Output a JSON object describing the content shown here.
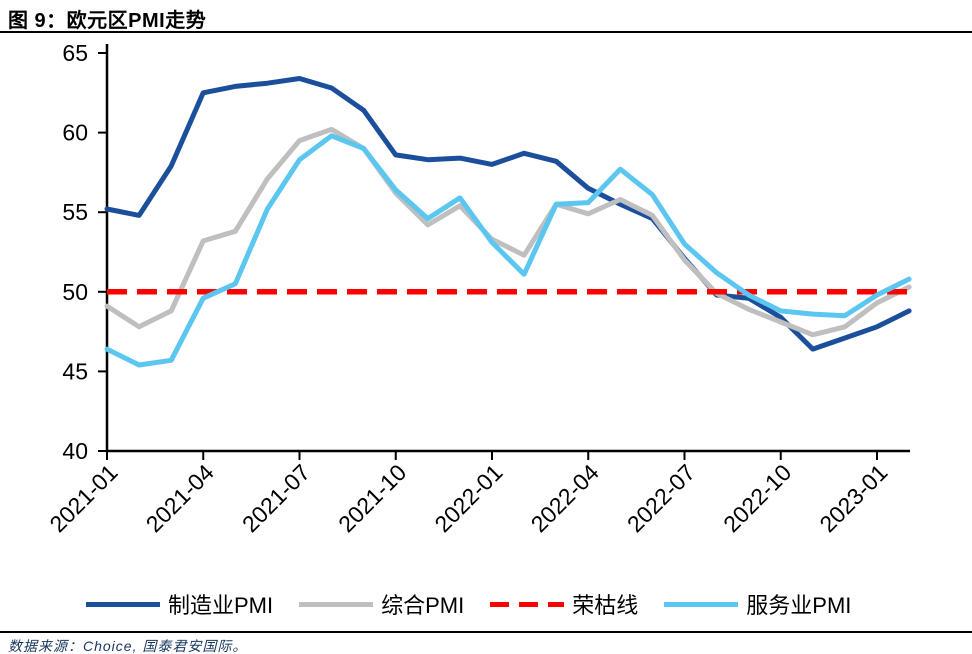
{
  "header": {
    "title": "图 9：欧元区PMI走势"
  },
  "footer": {
    "source": "数据来源：Choice, 国泰君安国际。"
  },
  "colors": {
    "manufacturing": "#1B4F9C",
    "composite": "#BFBFBF",
    "boom_bust": "#FF0000",
    "services": "#5BC6F0",
    "axis": "#000000"
  },
  "legend": [
    {
      "key": "manufacturing-pmi",
      "name": "制造业PMI",
      "color": "#1B4F9C",
      "style": "solid"
    },
    {
      "key": "composite-pmi",
      "name": "综合PMI",
      "color": "#BFBFBF",
      "style": "solid"
    },
    {
      "key": "boom-bust-line",
      "name": "荣枯线",
      "color": "#FF0000",
      "style": "dashed"
    },
    {
      "key": "services-pmi",
      "name": "服务业PMI",
      "color": "#5BC6F0",
      "style": "solid"
    }
  ],
  "chart_data": {
    "type": "line",
    "title": "欧元区PMI走势",
    "x": [
      "2021-01",
      "2021-02",
      "2021-03",
      "2021-04",
      "2021-05",
      "2021-06",
      "2021-07",
      "2021-08",
      "2021-09",
      "2021-10",
      "2021-11",
      "2021-12",
      "2022-01",
      "2022-02",
      "2022-03",
      "2022-04",
      "2022-05",
      "2022-06",
      "2022-07",
      "2022-08",
      "2022-09",
      "2022-10",
      "2022-11",
      "2022-12",
      "2023-01",
      "2023-02"
    ],
    "x_tick_labels": [
      "2021-01",
      "2021-04",
      "2021-07",
      "2021-10",
      "2022-01",
      "2022-04",
      "2022-07",
      "2022-10",
      "2023-01"
    ],
    "x_tick_every": 3,
    "ylim": [
      40,
      65
    ],
    "y_ticks": [
      40,
      45,
      50,
      55,
      60,
      65
    ],
    "grid": false,
    "legend_position": "bottom",
    "series": [
      {
        "key": "manufacturing-pmi",
        "name": "制造业PMI",
        "color": "#1B4F9C",
        "dashed": false,
        "values": [
          55.2,
          54.8,
          57.9,
          62.5,
          62.9,
          63.1,
          63.4,
          62.8,
          61.4,
          58.6,
          58.3,
          58.4,
          58.0,
          58.7,
          58.2,
          56.5,
          55.5,
          54.6,
          52.1,
          49.8,
          49.6,
          48.4,
          46.4,
          47.1,
          47.8,
          48.8
        ]
      },
      {
        "key": "composite-pmi",
        "name": "综合PMI",
        "color": "#BFBFBF",
        "dashed": false,
        "values": [
          49.1,
          47.8,
          48.8,
          53.2,
          53.8,
          57.1,
          59.5,
          60.2,
          59.0,
          56.2,
          54.2,
          55.4,
          53.3,
          52.3,
          55.5,
          54.9,
          55.8,
          54.8,
          52.0,
          49.9,
          48.9,
          48.1,
          47.3,
          47.8,
          49.3,
          50.3
        ]
      },
      {
        "key": "boom-bust-line",
        "name": "荣枯线",
        "color": "#FF0000",
        "dashed": true,
        "constant": 50
      },
      {
        "key": "services-pmi",
        "name": "服务业PMI",
        "color": "#5BC6F0",
        "dashed": false,
        "values": [
          46.4,
          45.4,
          45.7,
          49.6,
          50.5,
          55.2,
          58.3,
          59.8,
          59.0,
          56.4,
          54.6,
          55.9,
          53.1,
          51.1,
          55.5,
          55.6,
          57.7,
          56.1,
          53.0,
          51.2,
          49.8,
          48.8,
          48.6,
          48.5,
          49.8,
          50.8
        ]
      }
    ]
  }
}
